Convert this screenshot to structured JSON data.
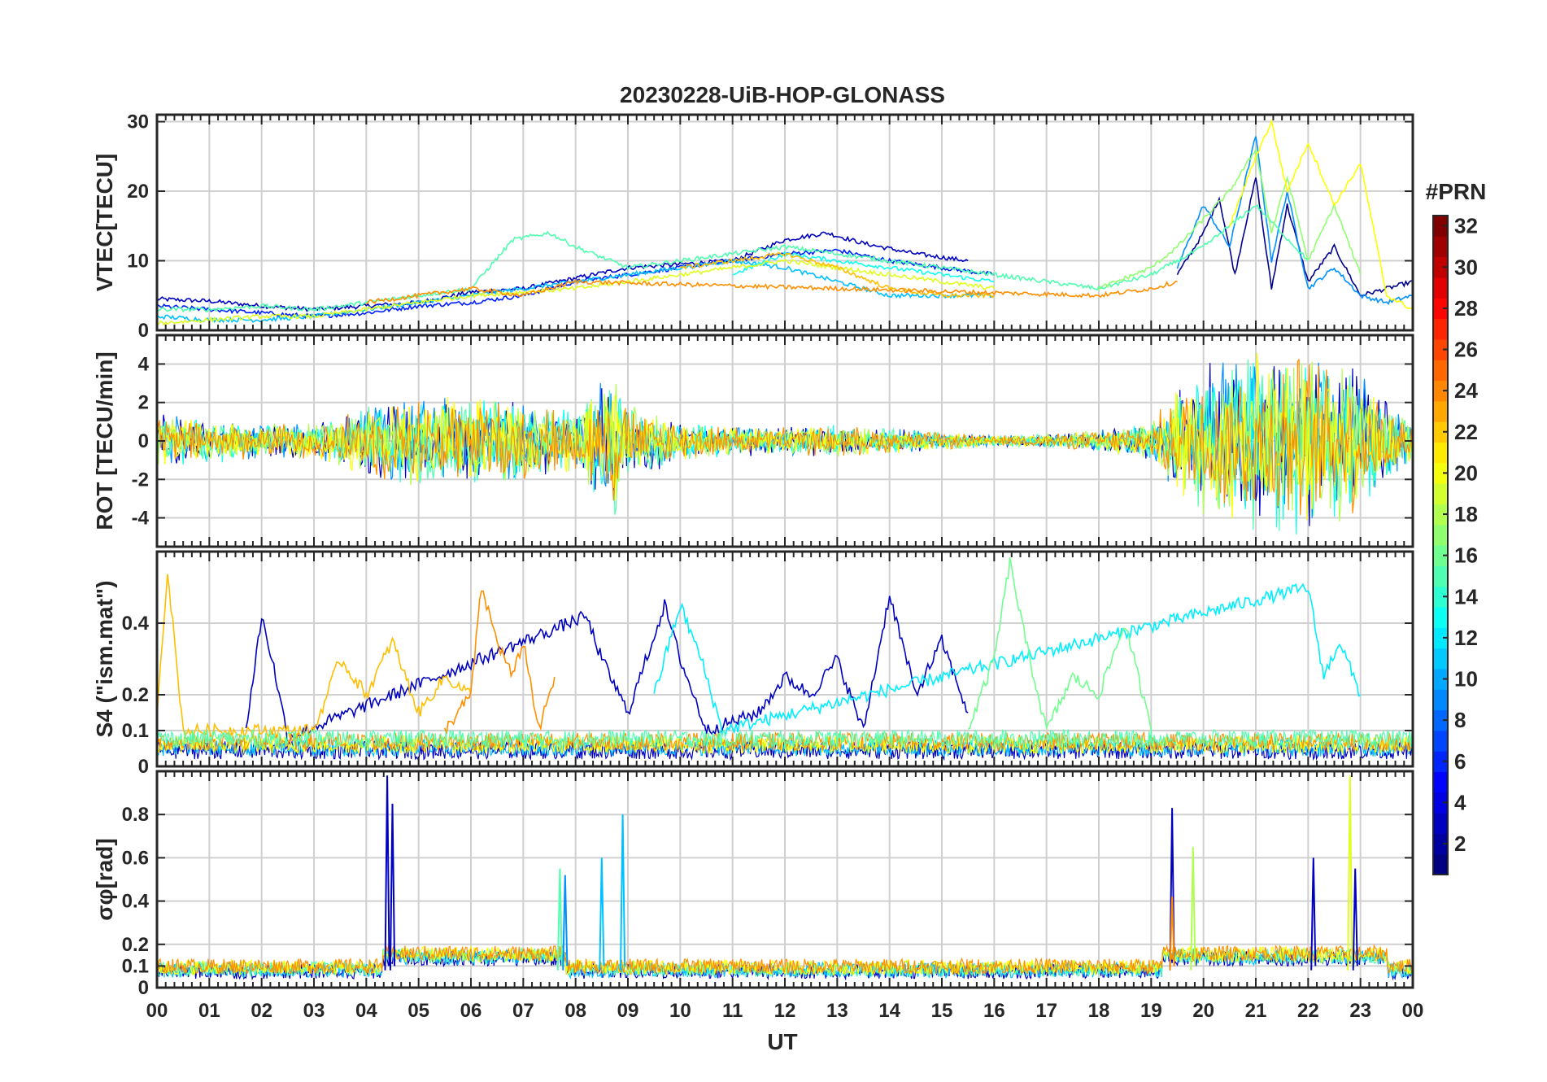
{
  "figure": {
    "title": "20230228-UiB-HOP-GLONASS",
    "xlabel": "UT",
    "x_ticks": [
      "00",
      "01",
      "02",
      "03",
      "04",
      "05",
      "06",
      "07",
      "08",
      "09",
      "10",
      "11",
      "12",
      "13",
      "14",
      "15",
      "16",
      "17",
      "18",
      "19",
      "20",
      "21",
      "22",
      "23",
      "00"
    ]
  },
  "colorbar": {
    "label": "#PRN",
    "colormap": "jet",
    "range": [
      1,
      32
    ],
    "levels": 32,
    "ticks": [
      "2",
      "4",
      "6",
      "8",
      "10",
      "12",
      "14",
      "16",
      "18",
      "20",
      "22",
      "24",
      "26",
      "28",
      "30",
      "32"
    ]
  },
  "chart_data": [
    {
      "type": "line",
      "panel": "VTEC",
      "ylabel": "VTEC[TECU]",
      "xlim": [
        0,
        24
      ],
      "ylim": [
        0,
        31
      ],
      "yticks": [
        0,
        10,
        20,
        30
      ],
      "ytick_labels": [
        "0",
        "10",
        "20",
        "30"
      ],
      "grid": true,
      "series": [
        {
          "prn": 3,
          "color": "#0000bf",
          "x": [
            0,
            1,
            2,
            3,
            4,
            5,
            6,
            7,
            8,
            9,
            10,
            11,
            12,
            12.8,
            13.5,
            14.5,
            15.5
          ],
          "y": [
            4.5,
            4.2,
            3.5,
            3,
            3.5,
            4,
            5.5,
            6,
            7.5,
            9,
            9.5,
            10,
            13,
            14,
            12.5,
            11,
            10
          ]
        },
        {
          "prn": 2,
          "color": "#00008f",
          "x": [
            19.5,
            20,
            20.3,
            20.6,
            21,
            21.3,
            21.6,
            22,
            22.5,
            23,
            23.5,
            24
          ],
          "y": [
            8,
            14,
            19,
            8,
            22,
            6,
            18,
            7,
            12,
            5,
            6,
            7
          ]
        },
        {
          "prn": 5,
          "color": "#0020ff",
          "x": [
            0,
            1,
            2,
            3,
            4,
            5,
            6,
            7,
            8,
            9,
            10,
            11,
            12,
            13,
            14,
            15,
            16
          ],
          "y": [
            3.5,
            3,
            2.5,
            2,
            2.5,
            3.5,
            4,
            5,
            7,
            8,
            9,
            10,
            11,
            11.5,
            10,
            9,
            8
          ]
        },
        {
          "prn": 9,
          "color": "#0090ff",
          "x": [
            19.5,
            20,
            20.5,
            21,
            21.3,
            21.6,
            22,
            22.5,
            23,
            23.5,
            24
          ],
          "y": [
            9,
            18,
            12,
            28,
            10,
            20,
            6,
            9,
            5,
            4,
            5
          ]
        },
        {
          "prn": 11,
          "color": "#00c0ff",
          "x": [
            0,
            1,
            2,
            3,
            4,
            5,
            6,
            7,
            8,
            9,
            10,
            11,
            12,
            13,
            14,
            15,
            16
          ],
          "y": [
            2,
            1.5,
            1.5,
            2,
            3,
            4,
            5,
            6,
            7,
            8,
            9,
            10,
            9,
            7,
            5,
            5,
            5
          ]
        },
        {
          "prn": 13,
          "color": "#10ffef",
          "x": [
            11,
            12,
            13,
            14,
            15,
            16
          ],
          "y": [
            8,
            11,
            10,
            9,
            8,
            7
          ]
        },
        {
          "prn": 15,
          "color": "#50ffaf",
          "x": [
            0,
            1,
            2,
            3,
            4,
            5,
            6,
            6.8,
            7.5,
            8,
            9,
            10,
            11,
            12,
            13,
            14,
            15,
            16,
            17,
            18,
            19,
            20,
            21,
            22
          ],
          "y": [
            3,
            3,
            3.5,
            3,
            4,
            5,
            6,
            13,
            14,
            12,
            9,
            10,
            11,
            12,
            11,
            10,
            9,
            8,
            7,
            6,
            8,
            12,
            18,
            10
          ]
        },
        {
          "prn": 17,
          "color": "#90ff6f",
          "x": [
            18,
            19,
            19.5,
            20,
            20.5,
            21,
            21.3,
            21.6,
            22,
            22.5,
            23
          ],
          "y": [
            6,
            9,
            12,
            16,
            20,
            26,
            14,
            22,
            10,
            18,
            8
          ]
        },
        {
          "prn": 19,
          "color": "#dfff20",
          "x": [
            0,
            1,
            2,
            3,
            4,
            5,
            6,
            7,
            8,
            9,
            10,
            11,
            12,
            13,
            14,
            15,
            16
          ],
          "y": [
            1,
            1.5,
            2,
            2,
            3,
            4,
            5,
            5.5,
            6,
            7,
            8,
            9,
            10,
            9,
            8,
            7,
            6
          ]
        },
        {
          "prn": 20,
          "color": "#ffff00",
          "x": [
            20.5,
            21,
            21.3,
            21.6,
            22,
            22.5,
            23,
            23.5,
            24
          ],
          "y": [
            15,
            25,
            30,
            20,
            27,
            18,
            24,
            5,
            3
          ]
        },
        {
          "prn": 22,
          "color": "#ffbf00",
          "x": [
            10,
            11,
            12,
            13,
            14,
            15,
            16
          ],
          "y": [
            9,
            10,
            11,
            9,
            6,
            5,
            5
          ]
        },
        {
          "prn": 24,
          "color": "#ff8f00",
          "x": [
            4,
            5,
            6,
            7,
            8,
            18,
            19,
            19.5
          ],
          "y": [
            4,
            5,
            6,
            5,
            7,
            5,
            6,
            7
          ]
        }
      ]
    },
    {
      "type": "line",
      "panel": "ROT",
      "ylabel": "ROT [TECU/min]",
      "xlim": [
        0,
        24
      ],
      "ylim": [
        -5.5,
        5.5
      ],
      "yticks": [
        -4,
        -2,
        0,
        2,
        4
      ],
      "ytick_labels": [
        "-4",
        "-2",
        "0",
        "2",
        "4"
      ],
      "grid": true,
      "envelope": {
        "x": [
          0,
          1,
          2,
          3,
          4,
          5,
          6,
          7,
          8,
          8.8,
          9,
          10,
          11,
          12,
          13,
          14,
          15,
          16,
          17,
          18,
          19,
          19.5,
          20,
          21,
          22,
          23,
          24
        ],
        "amplitude": [
          1.5,
          1.2,
          1,
          1,
          2,
          2.5,
          2.5,
          2.2,
          1.8,
          4,
          2,
          1.2,
          0.8,
          0.8,
          0.9,
          0.7,
          0.5,
          0.3,
          0.4,
          0.6,
          1,
          3,
          4,
          5,
          5,
          4,
          1
        ]
      },
      "series_colors": {
        "3": "#0000bf",
        "9": "#0090ff",
        "13": "#10ffef",
        "15": "#50ffaf",
        "18": "#afff50",
        "20": "#ffff00",
        "24": "#ff8f00"
      }
    },
    {
      "type": "line",
      "panel": "S4",
      "ylabel": "S4 (\"ism.mat\")",
      "xlim": [
        0,
        24
      ],
      "ylim": [
        0,
        0.6
      ],
      "yticks": [
        0,
        0.1,
        0.2,
        0.4
      ],
      "ytick_labels": [
        "0",
        "0.1",
        "0.2",
        "0.4"
      ],
      "grid": true,
      "series": [
        {
          "prn": 3,
          "color": "#0000bf",
          "x": [
            1.7,
            2,
            2.2,
            2.5,
            8.2,
            8.5,
            9,
            9.7,
            10,
            10.5,
            11.5,
            12,
            12.5,
            13,
            13.5,
            14,
            14.5,
            15,
            15.5
          ],
          "y": [
            0.1,
            0.42,
            0.3,
            0.08,
            0.42,
            0.3,
            0.15,
            0.45,
            0.3,
            0.1,
            0.15,
            0.25,
            0.2,
            0.3,
            0.1,
            0.48,
            0.2,
            0.35,
            0.15
          ]
        },
        {
          "prn": 12,
          "color": "#00efff",
          "x": [
            9.5,
            10,
            10.4,
            10.8,
            22,
            22.3,
            22.6,
            23
          ],
          "y": [
            0.2,
            0.45,
            0.3,
            0.1,
            0.5,
            0.25,
            0.35,
            0.2
          ]
        },
        {
          "prn": 16,
          "color": "#70ff8f",
          "x": [
            15.5,
            16,
            16.3,
            16.6,
            17,
            17.5,
            18,
            18.5,
            19
          ],
          "y": [
            0.1,
            0.3,
            0.57,
            0.35,
            0.1,
            0.25,
            0.2,
            0.4,
            0.1
          ]
        },
        {
          "prn": 22,
          "color": "#ffbf00",
          "x": [
            0,
            0.2,
            0.5,
            3,
            3.5,
            4,
            4.5,
            5,
            5.5,
            6
          ],
          "y": [
            0.15,
            0.55,
            0.1,
            0.1,
            0.3,
            0.2,
            0.35,
            0.15,
            0.25,
            0.2
          ]
        },
        {
          "prn": 24,
          "color": "#ff8f00",
          "x": [
            5.5,
            6,
            6.2,
            6.5,
            6.8,
            7,
            7.3,
            7.6
          ],
          "y": [
            0.1,
            0.2,
            0.5,
            0.35,
            0.25,
            0.35,
            0.1,
            0.25
          ]
        }
      ]
    },
    {
      "type": "line",
      "panel": "sigma_phi",
      "ylabel": "σφ[rad]",
      "xlim": [
        0,
        24
      ],
      "ylim": [
        0,
        1
      ],
      "yticks": [
        0,
        0.1,
        0.2,
        0.4,
        0.6,
        0.8
      ],
      "ytick_labels": [
        "0",
        "0.1",
        "0.2",
        "0.4",
        "0.6",
        "0.8"
      ],
      "grid": true,
      "spikes": [
        {
          "x": 4.4,
          "y": 0.98,
          "color": "#0000bf"
        },
        {
          "x": 4.5,
          "y": 0.85,
          "color": "#0000bf"
        },
        {
          "x": 7.7,
          "y": 0.55,
          "color": "#50ffaf"
        },
        {
          "x": 7.8,
          "y": 0.52,
          "color": "#0090ff"
        },
        {
          "x": 8.5,
          "y": 0.6,
          "color": "#00c0ff"
        },
        {
          "x": 8.9,
          "y": 0.8,
          "color": "#00c0ff"
        },
        {
          "x": 19.4,
          "y": 0.83,
          "color": "#0000bf"
        },
        {
          "x": 19.4,
          "y": 0.42,
          "color": "#ff8f00"
        },
        {
          "x": 19.8,
          "y": 0.65,
          "color": "#afff50"
        },
        {
          "x": 22.1,
          "y": 0.6,
          "color": "#0000bf"
        },
        {
          "x": 22.8,
          "y": 0.98,
          "color": "#dfff20"
        },
        {
          "x": 22.9,
          "y": 0.55,
          "color": "#0000bf"
        }
      ]
    }
  ]
}
